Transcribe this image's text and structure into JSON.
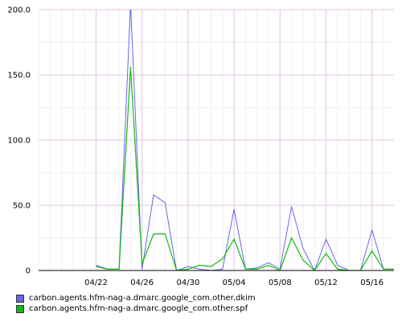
{
  "chart_data": {
    "type": "line",
    "x": [
      "04/17",
      "04/18",
      "04/19",
      "04/20",
      "04/21",
      "04/22",
      "04/23",
      "04/24",
      "04/25",
      "04/26",
      "04/27",
      "04/28",
      "04/29",
      "04/30",
      "05/01",
      "05/02",
      "05/03",
      "05/04",
      "05/05",
      "05/06",
      "05/07",
      "05/08",
      "05/09",
      "05/10",
      "05/11",
      "05/12",
      "05/13",
      "05/14",
      "05/15",
      "05/16",
      "05/17",
      "05/18",
      "05/19"
    ],
    "x_tick_labels": [
      "04/22",
      "04/26",
      "04/30",
      "05/04",
      "05/08",
      "05/12",
      "05/16"
    ],
    "y_tick_labels": [
      "0",
      "50.0",
      "100.0",
      "150.0",
      "200.0"
    ],
    "ylim": [
      0,
      200
    ],
    "series": [
      {
        "name": "carbon.agents.hfm-nag-a.dmarc.google_com.other.dkim",
        "color": "#6666ee",
        "values": [
          null,
          null,
          null,
          null,
          null,
          4,
          1,
          1,
          205,
          1,
          58,
          52,
          0,
          3,
          1,
          0,
          1,
          47,
          1,
          2,
          6,
          1,
          49,
          17,
          0,
          24,
          4,
          0,
          0,
          31,
          1,
          1,
          0
        ]
      },
      {
        "name": "carbon.agents.hfm-nag-a.dmarc.google_com.other.spf",
        "color": "#11bb11",
        "values": [
          null,
          null,
          null,
          null,
          null,
          3,
          1,
          1,
          156,
          5,
          28,
          28,
          0,
          1,
          4,
          3,
          9,
          24,
          1,
          1,
          4,
          0,
          25,
          8,
          0,
          13,
          1,
          0,
          0,
          15,
          1,
          1,
          0
        ]
      }
    ],
    "grid": true,
    "legend_position": "bottom-left"
  }
}
